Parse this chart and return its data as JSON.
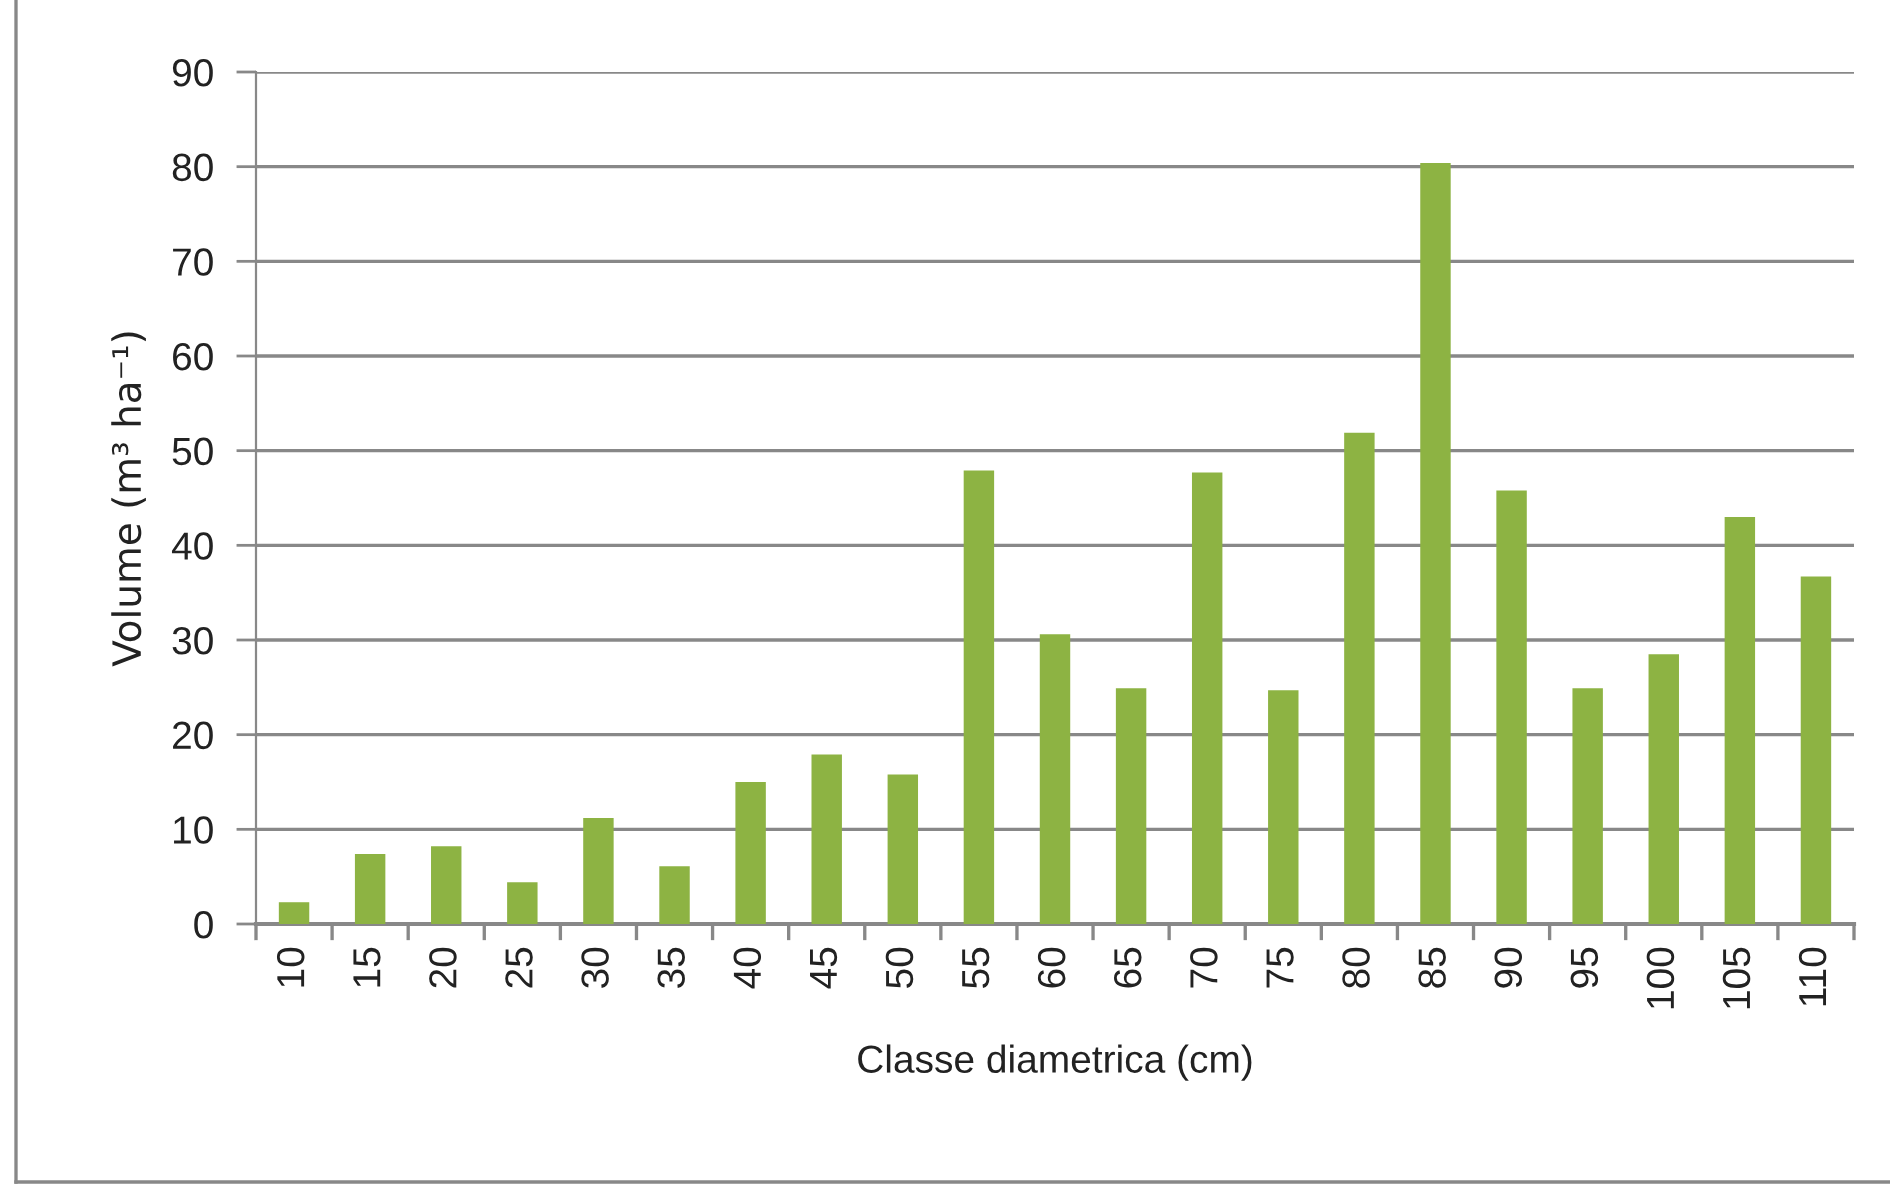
{
  "chart_data": {
    "type": "bar",
    "xlabel": "Classe diametrica (cm)",
    "ylabel": "Volume (m³ ha⁻¹)",
    "categories": [
      "10",
      "15",
      "20",
      "25",
      "30",
      "35",
      "40",
      "45",
      "50",
      "55",
      "60",
      "65",
      "70",
      "75",
      "80",
      "85",
      "90",
      "95",
      "100",
      "105",
      "110"
    ],
    "values": [
      2.3,
      7.4,
      8.2,
      4.4,
      11.2,
      6.1,
      15.0,
      17.9,
      15.8,
      47.9,
      30.6,
      24.9,
      47.7,
      24.7,
      51.9,
      80.4,
      45.8,
      24.9,
      28.5,
      43.0,
      36.7
    ],
    "color": "#8db343",
    "ylim": [
      0,
      90
    ],
    "yticks": [
      0,
      10,
      20,
      30,
      40,
      50,
      60,
      70,
      80,
      90
    ],
    "grid": "y"
  }
}
